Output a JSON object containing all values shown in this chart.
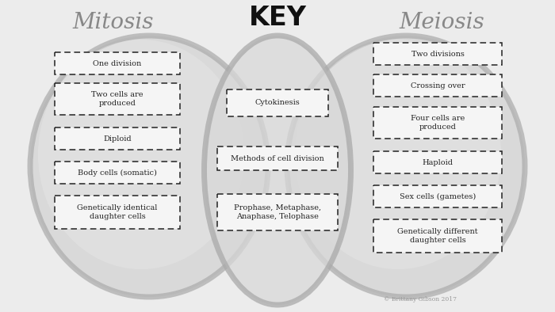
{
  "title_mitosis": "Mitosis",
  "title_key": "KEY",
  "title_meiosis": "Meiosis",
  "bg_color": "#ececec",
  "ellipse_edge_color": "#aaaaaa",
  "ellipse_fill_outer": "#cccccc",
  "ellipse_fill_inner": "#e0e0e0",
  "mitosis_items": [
    "One division",
    "Two cells are\nproduced",
    "Diploid",
    "Body cells (somatic)",
    "Genetically identical\ndaughter cells"
  ],
  "key_items": [
    "Cytokinesis",
    "Methods of cell division",
    "Prophase, Metaphase,\nAnaphase, Telophase"
  ],
  "meiosis_items": [
    "Two divisions",
    "Crossing over",
    "Four cells are\nproduced",
    "Haploid",
    "Sex cells (gametes)",
    "Genetically different\ndaughter cells"
  ],
  "box_edge_color": "#222222",
  "box_face_color": "#f5f5f5",
  "text_color": "#222222",
  "font_size": 7.0,
  "title_font_size_mit_mei": 20,
  "title_font_size_key": 24,
  "watermark": "© Brittany Gibson 2017"
}
